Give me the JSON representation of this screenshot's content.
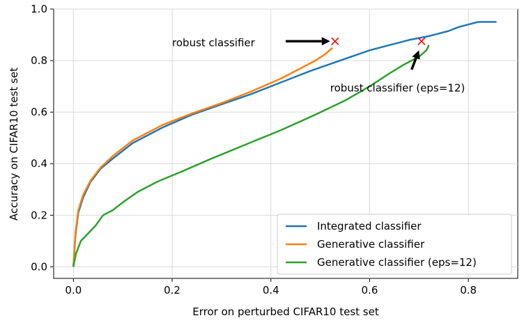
{
  "chart_data": {
    "type": "line",
    "xlabel": "Error on perturbed CIFAR10 test set",
    "ylabel": "Accuracy on CIFAR10 test set",
    "xlim": [
      -0.04,
      0.9
    ],
    "ylim": [
      -0.045,
      1.0
    ],
    "xticks": [
      0.0,
      0.2,
      0.4,
      0.6,
      0.8
    ],
    "xtick_labels": [
      "0.0",
      "0.2",
      "0.4",
      "0.6",
      "0.8"
    ],
    "yticks": [
      0.0,
      0.2,
      0.4,
      0.6,
      0.8,
      1.0
    ],
    "ytick_labels": [
      "0.0",
      "0.2",
      "0.4",
      "0.6",
      "0.8",
      "1.0"
    ],
    "grid": true,
    "legend_position": "lower-right",
    "series": [
      {
        "name": "Integrated classifier",
        "color": "#1f77b4",
        "x": [
          0.0,
          0.004,
          0.01,
          0.02,
          0.035,
          0.055,
          0.08,
          0.12,
          0.18,
          0.24,
          0.3,
          0.36,
          0.42,
          0.48,
          0.54,
          0.6,
          0.64,
          0.68,
          0.72,
          0.76,
          0.78,
          0.8,
          0.82,
          0.84,
          0.857
        ],
        "y": [
          0.0,
          0.12,
          0.21,
          0.27,
          0.33,
          0.38,
          0.42,
          0.48,
          0.54,
          0.59,
          0.63,
          0.67,
          0.715,
          0.76,
          0.8,
          0.84,
          0.86,
          0.88,
          0.895,
          0.915,
          0.93,
          0.94,
          0.95,
          0.95,
          0.95
        ]
      },
      {
        "name": "Generative classifier",
        "color": "#ff7f0e",
        "x": [
          0.0,
          0.004,
          0.01,
          0.02,
          0.035,
          0.055,
          0.08,
          0.12,
          0.18,
          0.24,
          0.3,
          0.36,
          0.42,
          0.46,
          0.49,
          0.51,
          0.525
        ],
        "y": [
          0.0,
          0.13,
          0.22,
          0.28,
          0.335,
          0.385,
          0.43,
          0.49,
          0.55,
          0.595,
          0.635,
          0.68,
          0.73,
          0.77,
          0.8,
          0.825,
          0.85
        ]
      },
      {
        "name": "Generative classifier (eps=12)",
        "color": "#2ca02c",
        "x": [
          0.0,
          0.005,
          0.015,
          0.03,
          0.045,
          0.06,
          0.08,
          0.1,
          0.13,
          0.17,
          0.22,
          0.28,
          0.35,
          0.42,
          0.49,
          0.55,
          0.6,
          0.64,
          0.67,
          0.7,
          0.715,
          0.72
        ],
        "y": [
          0.0,
          0.05,
          0.1,
          0.13,
          0.16,
          0.2,
          0.22,
          0.25,
          0.29,
          0.33,
          0.37,
          0.42,
          0.475,
          0.53,
          0.59,
          0.645,
          0.7,
          0.75,
          0.785,
          0.815,
          0.84,
          0.86
        ]
      }
    ],
    "markers": [
      {
        "color": "#ff0000",
        "x": 0.53,
        "y": 0.875
      },
      {
        "color": "#ff0000",
        "x": 0.705,
        "y": 0.875
      }
    ],
    "annotations": [
      {
        "text": "robust classifier",
        "x": 0.2,
        "y": 0.855,
        "arrow_from": [
          0.43,
          0.875
        ],
        "arrow_to": [
          0.52,
          0.875
        ]
      },
      {
        "text": "robust classifier (eps=12)",
        "x": 0.52,
        "y": 0.68,
        "arrow_from": [
          0.685,
          0.765
        ],
        "arrow_to": [
          0.7,
          0.84
        ]
      }
    ]
  }
}
